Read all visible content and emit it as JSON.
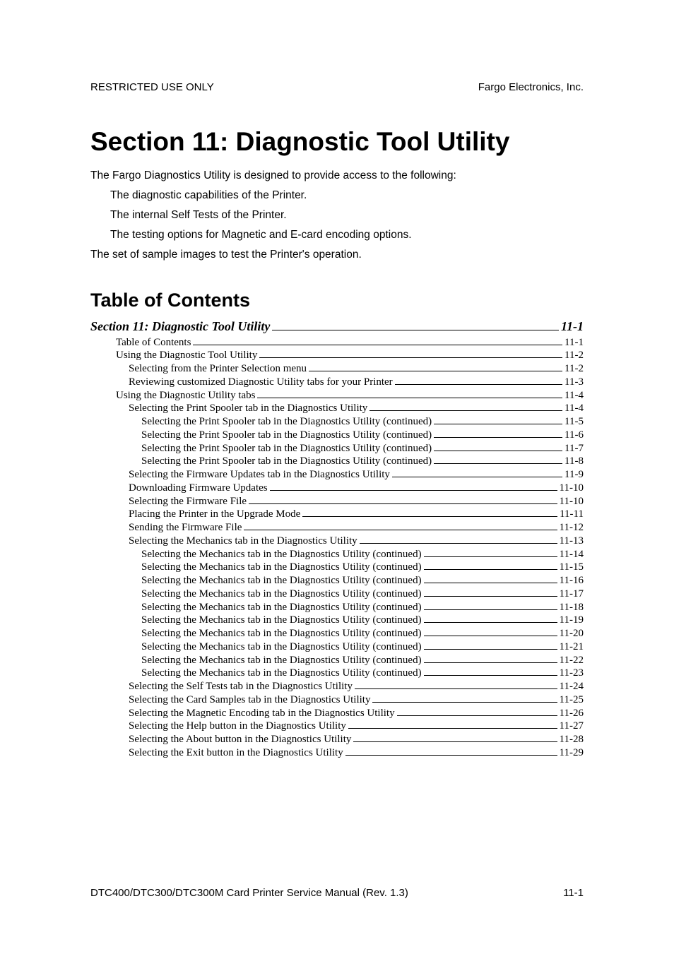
{
  "header": {
    "left": "RESTRICTED USE ONLY",
    "right": "Fargo Electronics, Inc."
  },
  "title": "Section 11: Diagnostic Tool Utility",
  "intro": "The Fargo Diagnostics Utility is designed to provide access to the following:",
  "bullets": [
    "The diagnostic capabilities of the Printer.",
    "The internal Self Tests of the Printer.",
    "The testing options for Magnetic and E-card encoding options."
  ],
  "closing": "The set of sample images to test the Printer's operation.",
  "toc_heading": "Table of Contents",
  "toc_section": {
    "label": "Section 11: Diagnostic Tool Utility",
    "page": "11-1"
  },
  "toc_entries": [
    {
      "indent": 1,
      "label": "Table of Contents",
      "page": "11-1"
    },
    {
      "indent": 1,
      "label": "Using the Diagnostic Tool Utility",
      "page": "11-2"
    },
    {
      "indent": 2,
      "label": "Selecting from the Printer Selection menu",
      "page": "11-2"
    },
    {
      "indent": 2,
      "label": "Reviewing customized Diagnostic Utility tabs for your Printer",
      "page": "11-3"
    },
    {
      "indent": 1,
      "label": "Using the Diagnostic Utility tabs",
      "page": "11-4"
    },
    {
      "indent": 2,
      "label": "Selecting the Print Spooler tab in the Diagnostics Utility",
      "page": "11-4"
    },
    {
      "indent": 3,
      "label": "Selecting the Print Spooler tab in the Diagnostics Utility (continued)",
      "page": "11-5"
    },
    {
      "indent": 3,
      "label": "Selecting the Print Spooler tab in the Diagnostics Utility (continued)",
      "page": "11-6"
    },
    {
      "indent": 3,
      "label": "Selecting the Print Spooler tab in the Diagnostics Utility (continued)",
      "page": "11-7"
    },
    {
      "indent": 3,
      "label": "Selecting the Print Spooler tab in the Diagnostics Utility (continued)",
      "page": "11-8"
    },
    {
      "indent": 2,
      "label": "Selecting the Firmware Updates tab in the Diagnostics Utility",
      "page": "11-9"
    },
    {
      "indent": 2,
      "label": "Downloading Firmware Updates",
      "page": "11-10"
    },
    {
      "indent": 2,
      "label": "Selecting the Firmware File",
      "page": "11-10"
    },
    {
      "indent": 2,
      "label": "Placing the Printer in the Upgrade Mode",
      "page": "11-11"
    },
    {
      "indent": 2,
      "label": "Sending the Firmware File",
      "page": "11-12"
    },
    {
      "indent": 2,
      "label": "Selecting the Mechanics tab in the Diagnostics Utility",
      "page": "11-13"
    },
    {
      "indent": 3,
      "label": "Selecting the Mechanics tab in the Diagnostics Utility (continued)",
      "page": "11-14"
    },
    {
      "indent": 3,
      "label": "Selecting the Mechanics tab in the Diagnostics Utility (continued)",
      "page": "11-15"
    },
    {
      "indent": 3,
      "label": "Selecting the Mechanics tab in the Diagnostics Utility (continued)",
      "page": "11-16"
    },
    {
      "indent": 3,
      "label": "Selecting the Mechanics tab in the Diagnostics Utility (continued)",
      "page": "11-17"
    },
    {
      "indent": 3,
      "label": "Selecting the Mechanics tab in the Diagnostics Utility (continued)",
      "page": "11-18"
    },
    {
      "indent": 3,
      "label": "Selecting the Mechanics tab in the Diagnostics Utility (continued)",
      "page": "11-19"
    },
    {
      "indent": 3,
      "label": "Selecting the Mechanics tab in the Diagnostics Utility (continued)",
      "page": "11-20"
    },
    {
      "indent": 3,
      "label": "Selecting the Mechanics tab in the Diagnostics Utility (continued)",
      "page": "11-21"
    },
    {
      "indent": 3,
      "label": "Selecting the Mechanics tab in the Diagnostics Utility (continued)",
      "page": "11-22"
    },
    {
      "indent": 3,
      "label": "Selecting the Mechanics tab in the Diagnostics Utility (continued)",
      "page": "11-23"
    },
    {
      "indent": 2,
      "label": "Selecting the Self Tests tab in the Diagnostics Utility",
      "page": "11-24"
    },
    {
      "indent": 2,
      "label": "Selecting the Card Samples tab in the Diagnostics Utility",
      "page": "11-25"
    },
    {
      "indent": 2,
      "label": "Selecting the Magnetic Encoding tab in the Diagnostics Utility",
      "page": "11-26"
    },
    {
      "indent": 2,
      "label": "Selecting the Help button in the Diagnostics Utility",
      "page": "11-27"
    },
    {
      "indent": 2,
      "label": "Selecting the About button in the Diagnostics Utility",
      "page": "11-28"
    },
    {
      "indent": 2,
      "label": "Selecting the Exit button in the Diagnostics Utility",
      "page": "11-29"
    }
  ],
  "footer": {
    "left": "DTC400/DTC300/DTC300M Card Printer Service Manual (Rev. 1.3)",
    "right": "11-1"
  }
}
